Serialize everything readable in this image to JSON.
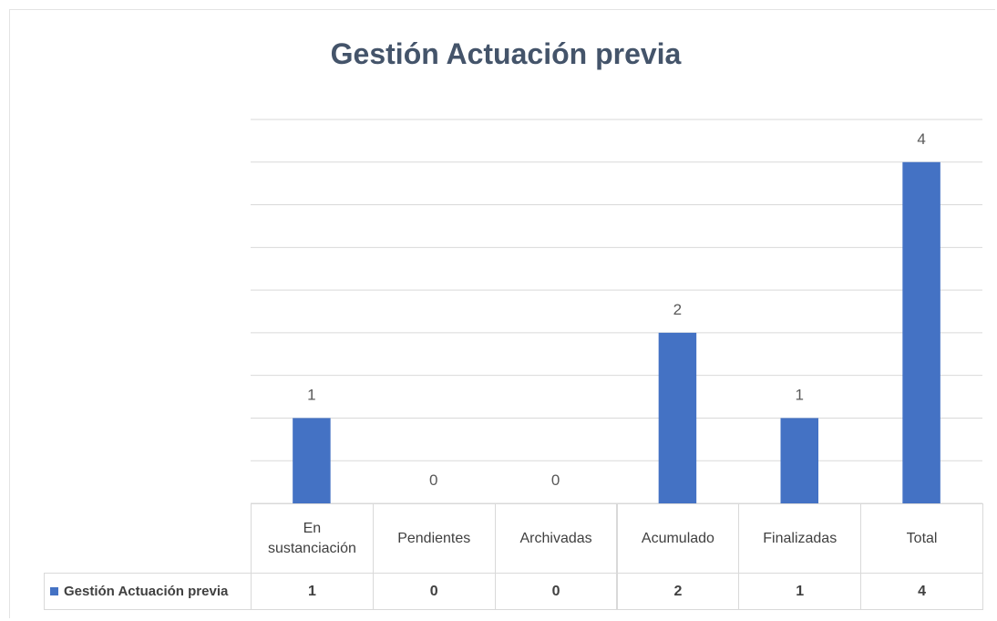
{
  "chart_data": {
    "type": "bar",
    "title": "Gestión Actuación previa",
    "categories": [
      "En sustanciación",
      "Pendientes",
      "Archivadas",
      "Acumulado",
      "Finalizadas",
      "Total"
    ],
    "series": [
      {
        "name": "Gestión Actuación previa",
        "color": "#4472c4",
        "values": [
          1,
          0,
          0,
          2,
          1,
          4
        ]
      }
    ],
    "ylim": [
      0,
      4.5
    ],
    "yticks": [
      0,
      0.5,
      1,
      1.5,
      2,
      2.5,
      3,
      3.5,
      4,
      4.5
    ],
    "grid": true,
    "data_table": true
  }
}
